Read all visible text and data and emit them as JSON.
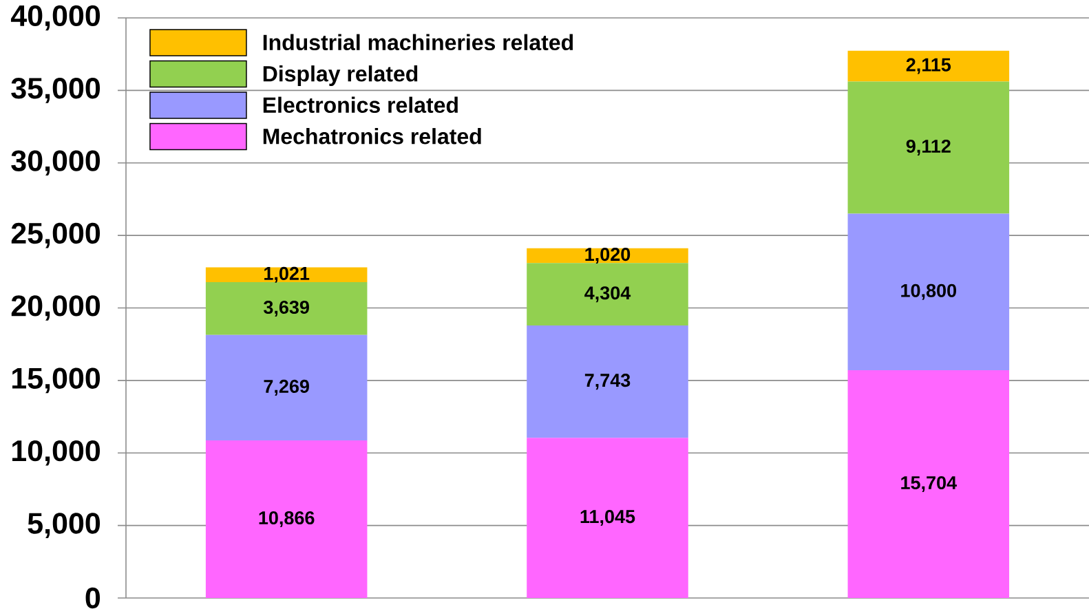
{
  "chart_data": {
    "type": "bar",
    "stacked": true,
    "categories": [
      null,
      null,
      null
    ],
    "series": [
      {
        "name": "Mechatronics related",
        "color": "#ff66ff",
        "values": [
          10866,
          11045,
          15704
        ],
        "value_labels": [
          "10,866",
          "11,045",
          "15,704"
        ]
      },
      {
        "name": "Electronics related",
        "color": "#9999ff",
        "values": [
          7269,
          7743,
          10800
        ],
        "value_labels": [
          "7,269",
          "7,743",
          "10,800"
        ]
      },
      {
        "name": "Display related",
        "color": "#92d050",
        "values": [
          3639,
          4304,
          9112
        ],
        "value_labels": [
          "3,639",
          "4,304",
          "9,112"
        ]
      },
      {
        "name": "Industrial machineries related",
        "color": "#ffc000",
        "values": [
          1021,
          1020,
          2115
        ],
        "value_labels": [
          "1,021",
          "1,020",
          "2,115"
        ]
      }
    ],
    "ylim": [
      0,
      40000
    ],
    "yticks": [
      {
        "value": 0,
        "label": "0"
      },
      {
        "value": 5000,
        "label": "5,000"
      },
      {
        "value": 10000,
        "label": "10,000"
      },
      {
        "value": 15000,
        "label": "15,000"
      },
      {
        "value": 20000,
        "label": "20,000"
      },
      {
        "value": 25000,
        "label": "25,000"
      },
      {
        "value": 30000,
        "label": "30,000"
      },
      {
        "value": 35000,
        "label": "35,000"
      },
      {
        "value": 40000,
        "label": "40,000"
      }
    ],
    "grid": "y",
    "legend": "top left",
    "tick_labels": "y"
  }
}
